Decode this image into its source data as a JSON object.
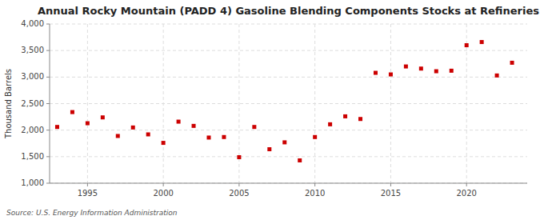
{
  "chart_data": {
    "type": "scatter",
    "title": "Annual Rocky Mountain (PADD 4) Gasoline Blending Components Stocks at Refineries",
    "ylabel": "Thousand Barrels",
    "source": "Source: U.S. Energy Information Administration",
    "x": [
      1993,
      1994,
      1995,
      1996,
      1997,
      1998,
      1999,
      2000,
      2001,
      2002,
      2003,
      2004,
      2005,
      2006,
      2007,
      2008,
      2009,
      2010,
      2011,
      2012,
      2013,
      2014,
      2015,
      2016,
      2017,
      2018,
      2019,
      2020,
      2021,
      2022,
      2023
    ],
    "values": [
      2060,
      2340,
      2130,
      2240,
      1890,
      2050,
      1920,
      1760,
      2160,
      2080,
      1860,
      1870,
      1490,
      2060,
      1640,
      1770,
      1430,
      1870,
      2110,
      2260,
      2210,
      3080,
      3050,
      3200,
      3160,
      3110,
      3120,
      3600,
      3660,
      3030,
      3270
    ],
    "color": "#cc0000",
    "marker": "square",
    "xlim": [
      1992.5,
      2024
    ],
    "xticks": [
      1995,
      2000,
      2005,
      2010,
      2015,
      2020
    ],
    "ylim": [
      1000,
      4000
    ],
    "yticks": [
      {
        "value": 1000,
        "label": "1,000"
      },
      {
        "value": 1500,
        "label": "1,500"
      },
      {
        "value": 2000,
        "label": "2,000"
      },
      {
        "value": 2500,
        "label": "2,500"
      },
      {
        "value": 3000,
        "label": "3,000"
      },
      {
        "value": 3500,
        "label": "3,500"
      },
      {
        "value": 4000,
        "label": "4,000"
      }
    ],
    "grid": true
  }
}
